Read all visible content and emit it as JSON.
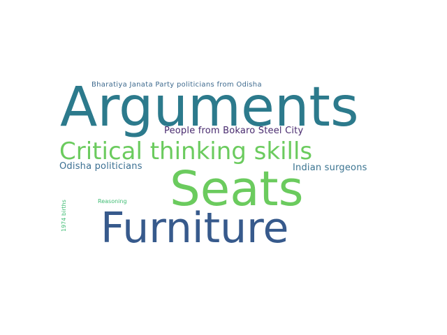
{
  "words": {
    "arguments": {
      "text": "Arguments",
      "color": "#2c7a8c"
    },
    "seats": {
      "text": "Seats",
      "color": "#6bcb5e"
    },
    "furniture": {
      "text": "Furniture",
      "color": "#375a8c"
    },
    "critical_thinking": {
      "text": "Critical thinking skills",
      "color": "#6bcb5e"
    },
    "bokaro": {
      "text": "People from Bokaro Steel City",
      "color": "#482a6e"
    },
    "bjp_politicians": {
      "text": "Bharatiya Janata Party politicians from Odisha",
      "color": "#3e6a8e"
    },
    "odisha_politicians": {
      "text": "Odisha politicians",
      "color": "#3b6f92"
    },
    "indian_surgeons": {
      "text": "Indian surgeons",
      "color": "#3a7390"
    },
    "reasoning": {
      "text": "Reasoning",
      "color": "#3fbc73"
    },
    "births_1974": {
      "text": "1974 births",
      "color": "#3fbc73"
    }
  }
}
